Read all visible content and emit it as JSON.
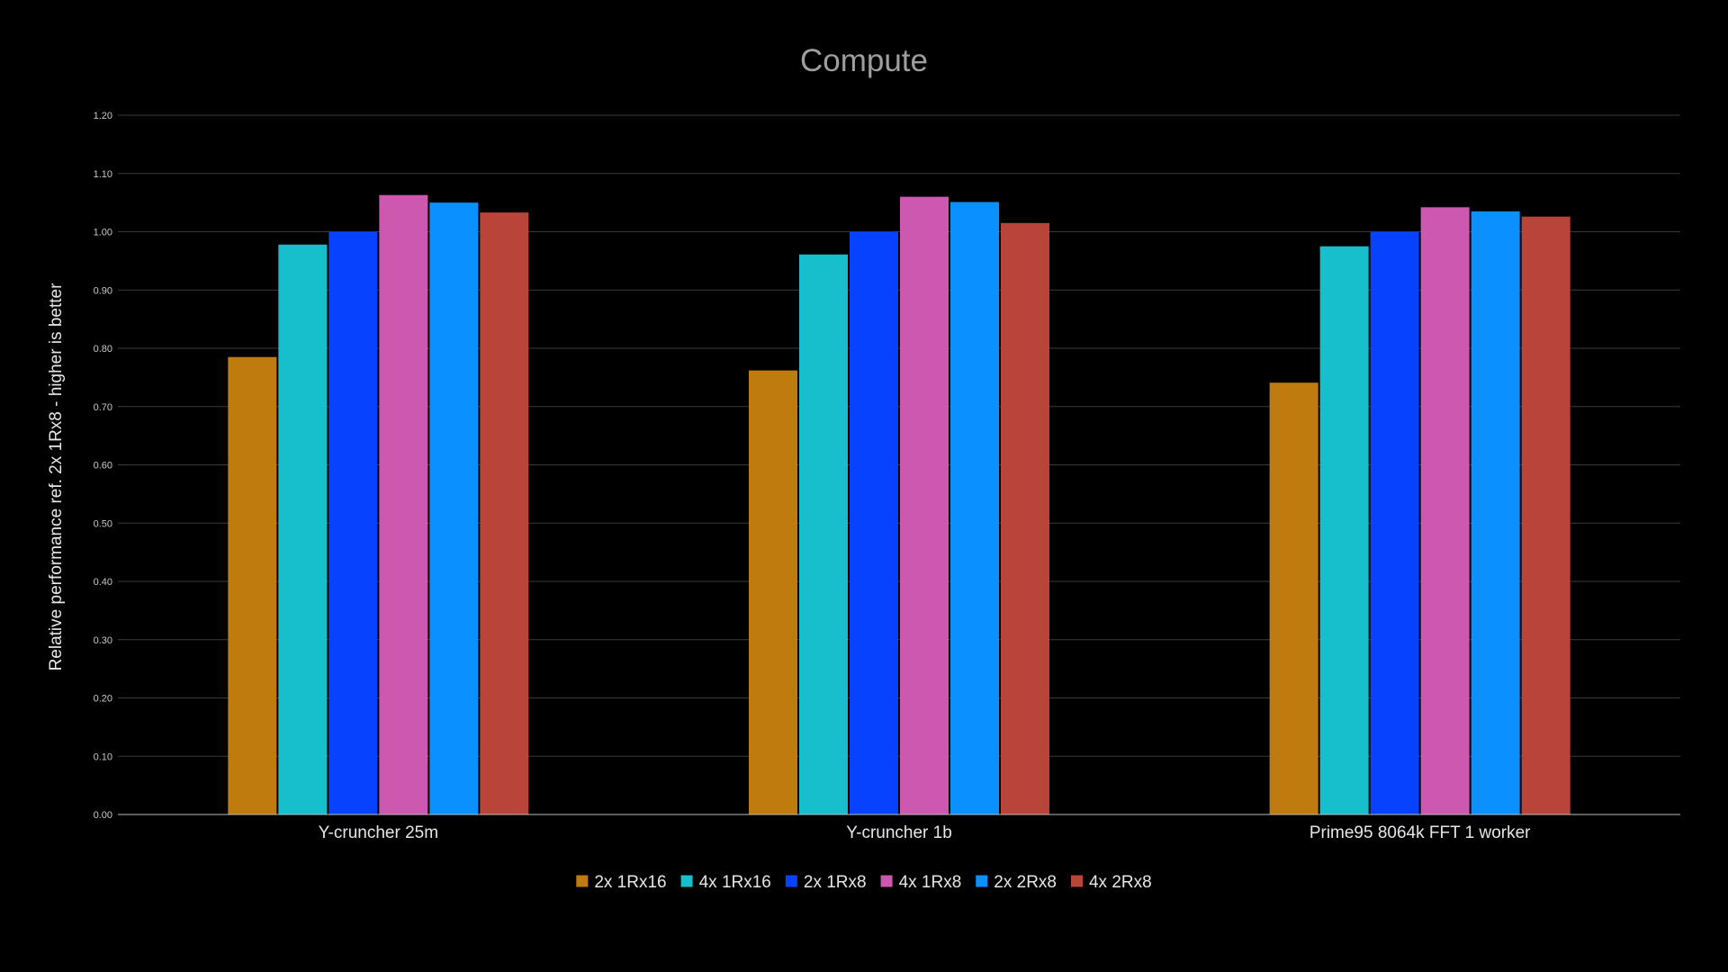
{
  "chart_data": {
    "type": "bar",
    "title": "Compute",
    "xlabel": "",
    "ylabel": "Relative performance ref. 2x 1Rx8 - higher is better",
    "ylim": [
      0,
      1.2
    ],
    "yticks": [
      "0.00",
      "0.10",
      "0.20",
      "0.30",
      "0.40",
      "0.50",
      "0.60",
      "0.70",
      "0.80",
      "0.90",
      "1.00",
      "1.10",
      "1.20"
    ],
    "categories": [
      "Y-cruncher 25m",
      "Y-cruncher 1b",
      "Prime95 8064k FFT 1 worker"
    ],
    "grid": true,
    "legend_position": "bottom",
    "series": [
      {
        "name": "2x 1Rx16",
        "color": "#bf7b0e",
        "values": [
          0.785,
          0.762,
          0.741
        ]
      },
      {
        "name": "4x 1Rx16",
        "color": "#17bfcc",
        "values": [
          0.978,
          0.961,
          0.975
        ]
      },
      {
        "name": "2x 1Rx8",
        "color": "#0743ff",
        "values": [
          1.0,
          1.0,
          1.0
        ]
      },
      {
        "name": "4x 1Rx8",
        "color": "#cc58b0",
        "values": [
          1.063,
          1.06,
          1.042
        ]
      },
      {
        "name": "2x 2Rx8",
        "color": "#0a91ff",
        "values": [
          1.05,
          1.051,
          1.035
        ]
      },
      {
        "name": "4x 2Rx8",
        "color": "#b8443a",
        "values": [
          1.033,
          1.015,
          1.026
        ]
      }
    ]
  }
}
